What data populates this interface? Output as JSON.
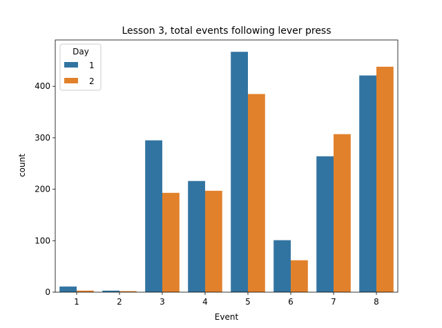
{
  "chart_data": {
    "type": "bar",
    "title": "Lesson 3, total events following lever press",
    "xlabel": "Event",
    "ylabel": "count",
    "categories": [
      "1",
      "2",
      "3",
      "4",
      "5",
      "6",
      "7",
      "8"
    ],
    "series": [
      {
        "name": "1",
        "color": "#3274a1",
        "values": [
          11,
          3,
          295,
          216,
          467,
          101,
          264,
          421
        ]
      },
      {
        "name": "2",
        "color": "#e1812c",
        "values": [
          3,
          2,
          193,
          197,
          385,
          62,
          307,
          438
        ]
      }
    ],
    "ylim": [
      0,
      490
    ],
    "yticks": [
      0,
      100,
      200,
      300,
      400
    ],
    "legend": {
      "title": "Day",
      "placement": "top-left"
    },
    "grid": false
  }
}
